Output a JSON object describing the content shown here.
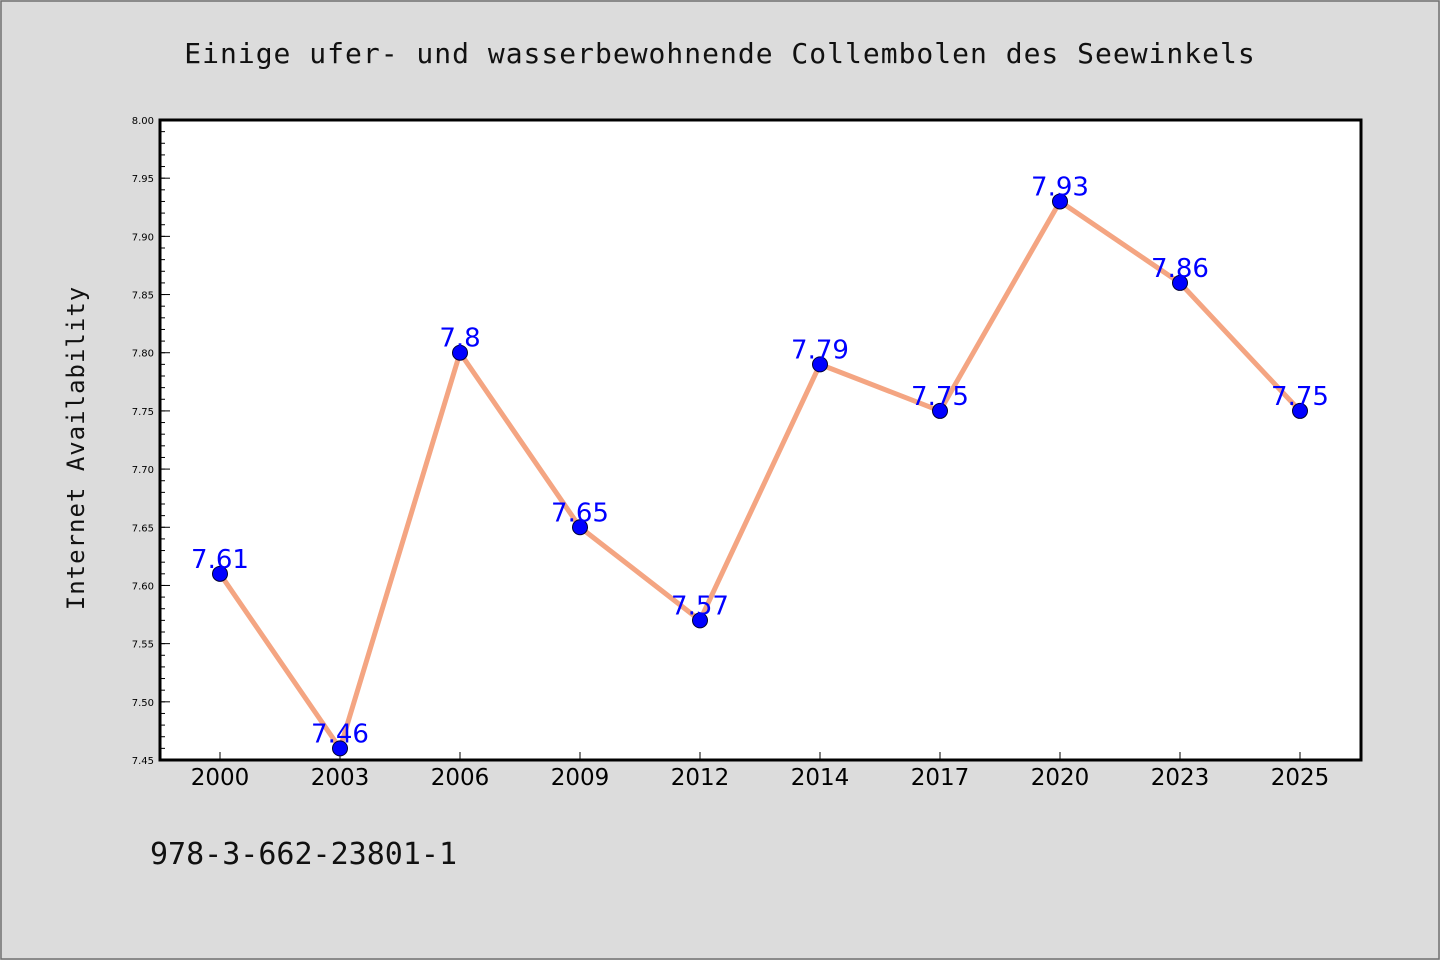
{
  "chart_data": {
    "type": "line",
    "title": "Einige ufer- und wasserbewohnende Collembolen des Seewinkels",
    "xlabel": "",
    "ylabel": "Internet Availability",
    "categories": [
      "2000",
      "2003",
      "2006",
      "2009",
      "2012",
      "2014",
      "2017",
      "2020",
      "2023",
      "2025"
    ],
    "series": [
      {
        "values": [
          7.61,
          7.46,
          7.8,
          7.65,
          7.57,
          7.79,
          7.75,
          7.93,
          7.86,
          7.75
        ],
        "data_labels": [
          "7.61",
          "7.46",
          "7.8",
          "7.65",
          "7.57",
          "7.79",
          "7.75",
          "7.93",
          "7.86",
          "7.75"
        ]
      }
    ],
    "ylim": [
      7.45,
      8.0
    ],
    "yticks": [
      "7.45",
      "7.50",
      "7.55",
      "7.60",
      "7.65",
      "7.70",
      "7.75",
      "7.80",
      "7.85",
      "7.90",
      "7.95",
      "8.00"
    ],
    "grid": false,
    "legend": "none",
    "colors": {
      "line": "#f4a582",
      "marker": "#0000ff",
      "data_label": "#0000ff",
      "background": "#dcdcdc",
      "plot_background": "#ffffff"
    },
    "footer": "978-3-662-23801-1"
  }
}
